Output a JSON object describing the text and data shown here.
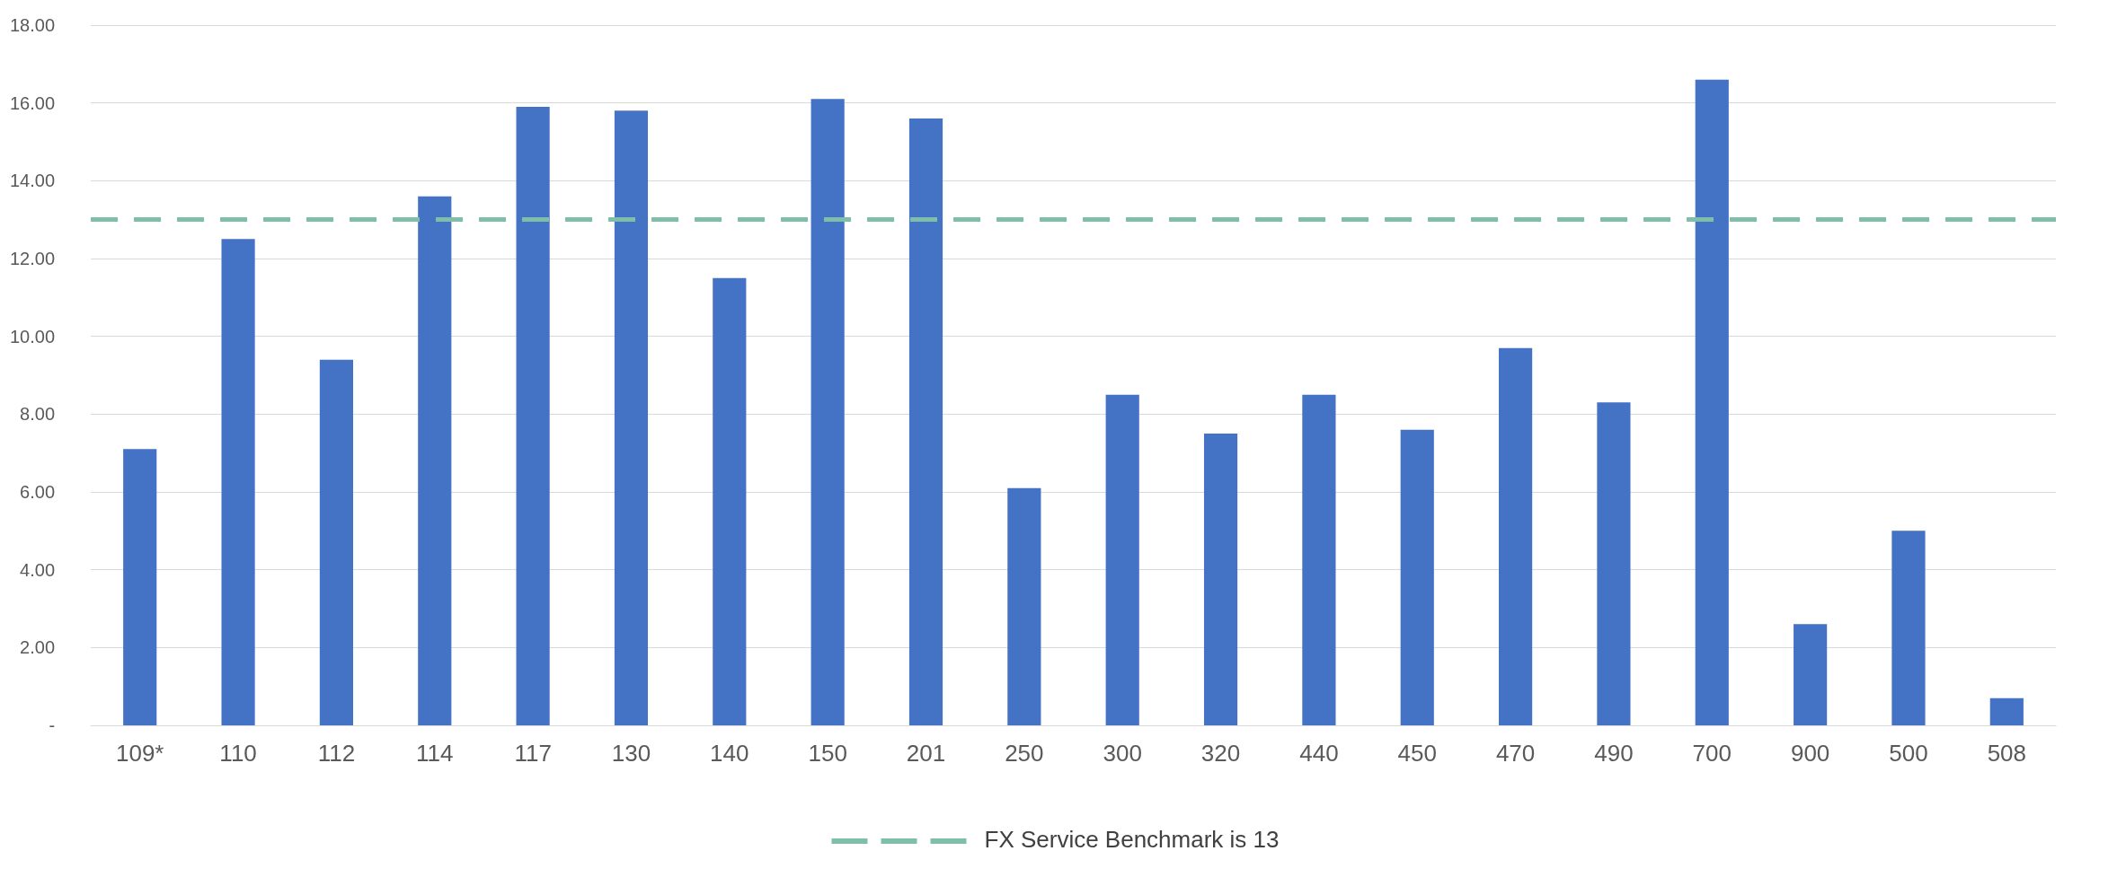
{
  "chart_data": {
    "type": "bar",
    "categories": [
      "109*",
      "110",
      "112",
      "114",
      "117",
      "130",
      "140",
      "150",
      "201",
      "250",
      "300",
      "320",
      "440",
      "450",
      "470",
      "490",
      "700",
      "900",
      "500",
      "508"
    ],
    "series": [
      {
        "color": "#4472c4",
        "values": [
          7.1,
          12.5,
          9.4,
          13.6,
          15.9,
          15.8,
          11.5,
          16.1,
          15.6,
          6.1,
          8.5,
          7.5,
          8.5,
          7.6,
          9.7,
          8.3,
          16.6,
          2.6,
          5.0,
          0.7
        ]
      }
    ],
    "ylim": [
      0,
      18
    ],
    "yticks": [
      {
        "value": 0,
        "label": "-"
      },
      {
        "value": 2,
        "label": "2.00"
      },
      {
        "value": 4,
        "label": "4.00"
      },
      {
        "value": 6,
        "label": "6.00"
      },
      {
        "value": 8,
        "label": "8.00"
      },
      {
        "value": 10,
        "label": "10.00"
      },
      {
        "value": 12,
        "label": "12.00"
      },
      {
        "value": 14,
        "label": "14.00"
      },
      {
        "value": 16,
        "label": "16.00"
      },
      {
        "value": 18,
        "label": "18.00"
      }
    ],
    "ref_lines": [
      {
        "axis": "y",
        "value": 13,
        "label": "FX Service Benchmark is 13",
        "color": "#7fbfa9",
        "line_style": "dashed"
      }
    ],
    "grid": "y",
    "legend": "bottom"
  }
}
